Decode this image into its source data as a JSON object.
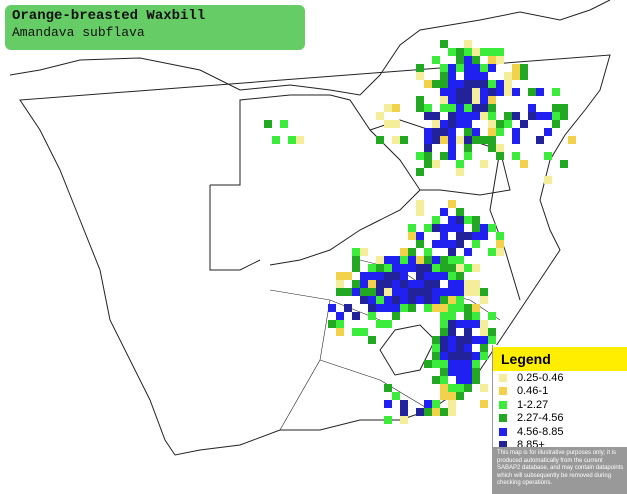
{
  "title": "Orange-breasted Waxbill",
  "subtitle": "Amandava subflava",
  "legend": {
    "title": "Legend",
    "items": [
      {
        "label": "0.25-0.46",
        "color": "#f4ee9a"
      },
      {
        "label": "0.46-1",
        "color": "#f2d24a"
      },
      {
        "label": "1-2.27",
        "color": "#3cec3c"
      },
      {
        "label": "2.27-4.56",
        "color": "#22a822"
      },
      {
        "label": "4.56-8.85",
        "color": "#2020f0"
      },
      {
        "label": "8.85+",
        "color": "#22229a"
      }
    ],
    "note": "This map is for illustrative purposes only; it is produced automatically from the current SABAP2 database, and may contain datapoints which will subsequently be removed during checking operations."
  }
}
